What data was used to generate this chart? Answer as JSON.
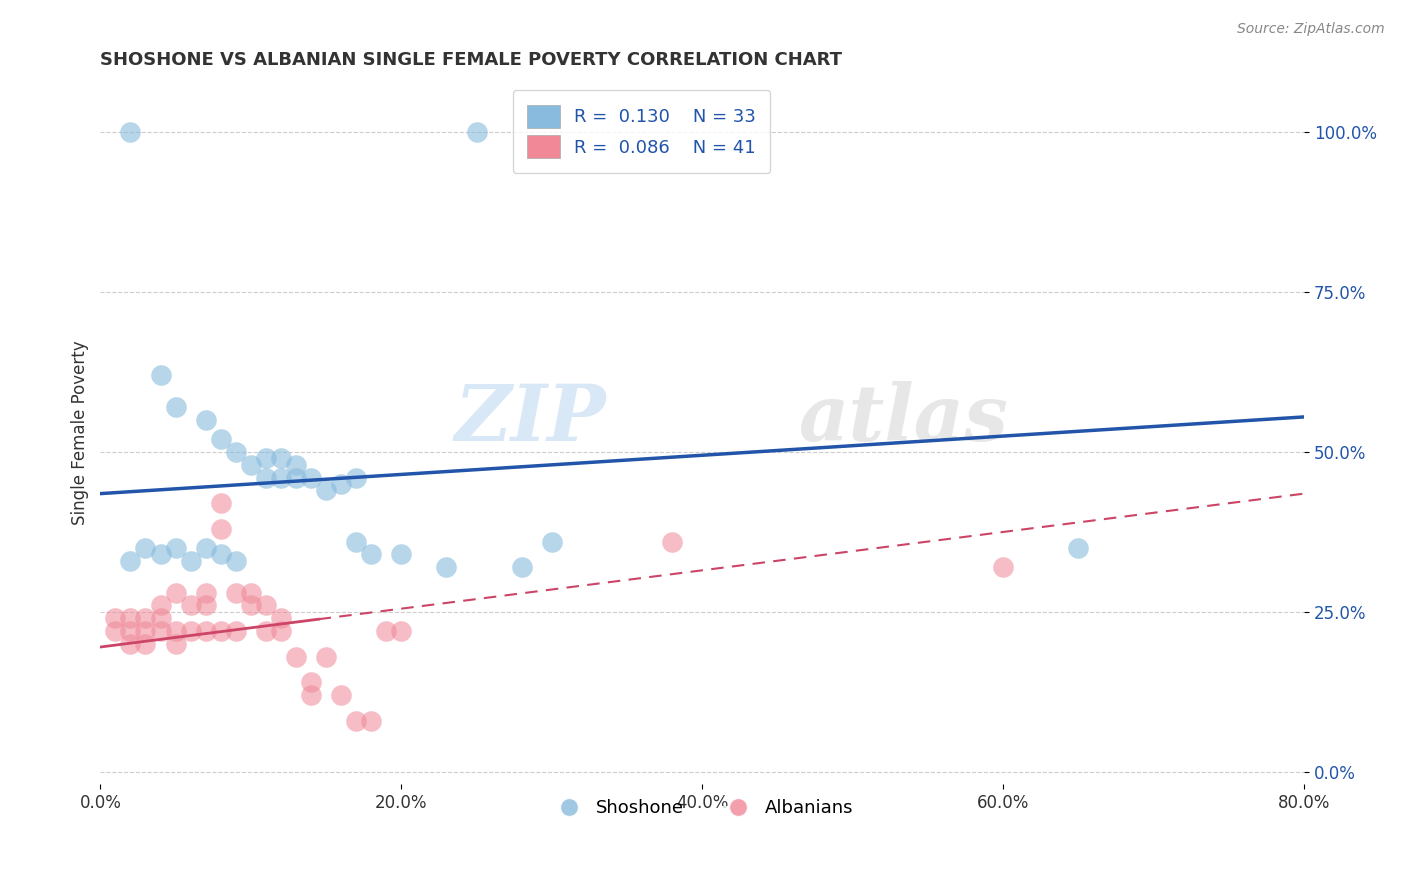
{
  "title": "SHOSHONE VS ALBANIAN SINGLE FEMALE POVERTY CORRELATION CHART",
  "source": "Source: ZipAtlas.com",
  "ylabel": "Single Female Poverty",
  "xlim": [
    0.0,
    0.8
  ],
  "ylim": [
    -0.02,
    1.08
  ],
  "xticks": [
    0.0,
    0.2,
    0.4,
    0.6,
    0.8
  ],
  "xtick_labels": [
    "0.0%",
    "20.0%",
    "40.0%",
    "60.0%",
    "80.0%"
  ],
  "yticks": [
    0.0,
    0.25,
    0.5,
    0.75,
    1.0
  ],
  "ytick_labels": [
    "0.0%",
    "25.0%",
    "50.0%",
    "75.0%",
    "100.0%"
  ],
  "shoshone_color": "#88bbdd",
  "albanian_color": "#f08898",
  "shoshone_line_color": "#2255aa",
  "albanian_line_color": "#cc4466",
  "R_shoshone": 0.13,
  "N_shoshone": 33,
  "R_albanian": 0.086,
  "N_albanian": 41,
  "shoshone_x": [
    0.02,
    0.25,
    0.04,
    0.05,
    0.07,
    0.08,
    0.09,
    0.1,
    0.11,
    0.11,
    0.12,
    0.12,
    0.13,
    0.13,
    0.14,
    0.15,
    0.16,
    0.17,
    0.28,
    0.3,
    0.02,
    0.03,
    0.04,
    0.05,
    0.06,
    0.07,
    0.08,
    0.09,
    0.2,
    0.23,
    0.17,
    0.18,
    0.65
  ],
  "shoshone_y": [
    1.0,
    1.0,
    0.62,
    0.57,
    0.55,
    0.52,
    0.5,
    0.48,
    0.46,
    0.49,
    0.46,
    0.49,
    0.46,
    0.48,
    0.46,
    0.44,
    0.45,
    0.46,
    0.32,
    0.36,
    0.33,
    0.35,
    0.34,
    0.35,
    0.33,
    0.35,
    0.34,
    0.33,
    0.34,
    0.32,
    0.36,
    0.34,
    0.35
  ],
  "albanian_x": [
    0.01,
    0.01,
    0.02,
    0.02,
    0.02,
    0.03,
    0.03,
    0.03,
    0.04,
    0.04,
    0.04,
    0.05,
    0.05,
    0.05,
    0.06,
    0.06,
    0.07,
    0.07,
    0.07,
    0.08,
    0.08,
    0.08,
    0.09,
    0.09,
    0.1,
    0.1,
    0.11,
    0.11,
    0.12,
    0.12,
    0.13,
    0.14,
    0.14,
    0.15,
    0.16,
    0.17,
    0.18,
    0.19,
    0.2,
    0.38,
    0.6
  ],
  "albanian_y": [
    0.22,
    0.24,
    0.2,
    0.22,
    0.24,
    0.2,
    0.22,
    0.24,
    0.26,
    0.22,
    0.24,
    0.2,
    0.22,
    0.28,
    0.22,
    0.26,
    0.22,
    0.26,
    0.28,
    0.22,
    0.38,
    0.42,
    0.22,
    0.28,
    0.26,
    0.28,
    0.22,
    0.26,
    0.22,
    0.24,
    0.18,
    0.14,
    0.12,
    0.18,
    0.12,
    0.08,
    0.08,
    0.22,
    0.22,
    0.36,
    0.32
  ],
  "background_color": "#ffffff",
  "grid_color": "#cccccc",
  "watermark_text": "ZIPatlas",
  "legend_color": "#2255aa",
  "shoshone_line_start_y": 0.435,
  "shoshone_line_end_y": 0.555,
  "albanian_line_start_y": 0.195,
  "albanian_line_end_y": 0.435
}
